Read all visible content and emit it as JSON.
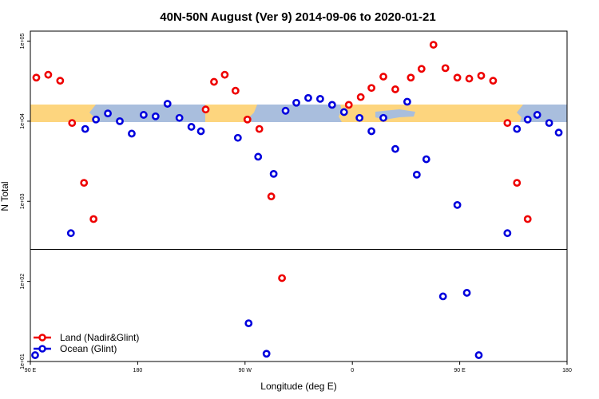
{
  "chart_data": {
    "type": "scatter",
    "title": "40N-50N August (Ver 9)   2014-09-06 to 2020-01-21",
    "xlabel": "Longitude (deg E)",
    "ylabel": "N Total",
    "x_scale": "linear",
    "y_scale": "log",
    "xlim": [
      90,
      540
    ],
    "ylim_log10": [
      1,
      5.1
    ],
    "x_ticks": [
      {
        "value": 90,
        "label": "90 E"
      },
      {
        "value": 180,
        "label": "180"
      },
      {
        "value": 270,
        "label": "90 W"
      },
      {
        "value": 360,
        "label": "0"
      },
      {
        "value": 450,
        "label": "90 E"
      },
      {
        "value": 540,
        "label": "180"
      }
    ],
    "y_ticks": [
      {
        "value": 1,
        "label": "1e+01"
      },
      {
        "value": 2,
        "label": "1e+02"
      },
      {
        "value": 3,
        "label": "1e+03"
      },
      {
        "value": 4,
        "label": "1e+04"
      },
      {
        "value": 5,
        "label": "1e+05"
      }
    ],
    "reference_line_log10": 2.4,
    "map_band": {
      "lon_range": [
        90,
        540
      ],
      "lat_range": [
        40,
        50
      ],
      "land_color": "#FDD57E",
      "ocean_color": "#A9BEDD"
    },
    "legend_position": "bottom-left",
    "series": [
      {
        "name": "Land (Nadir&Glint)",
        "color": "#EE0000",
        "points": [
          [
            95,
            35000
          ],
          [
            105,
            38000
          ],
          [
            115,
            32000
          ],
          [
            125,
            9500
          ],
          [
            135,
            1700
          ],
          [
            143,
            600
          ],
          [
            237,
            14000
          ],
          [
            244,
            31000
          ],
          [
            253,
            38000
          ],
          [
            262,
            24000
          ],
          [
            272,
            10500
          ],
          [
            282,
            8000
          ],
          [
            292,
            1150
          ],
          [
            301,
            110
          ],
          [
            357,
            16000
          ],
          [
            367,
            20000
          ],
          [
            376,
            26000
          ],
          [
            386,
            36000
          ],
          [
            396,
            25000
          ],
          [
            409,
            35000
          ],
          [
            418,
            45000
          ],
          [
            428,
            90000
          ],
          [
            438,
            46000
          ],
          [
            448,
            35000
          ],
          [
            458,
            34000
          ],
          [
            468,
            37000
          ],
          [
            478,
            32000
          ],
          [
            490,
            9500
          ],
          [
            498,
            1700
          ],
          [
            507,
            600
          ]
        ]
      },
      {
        "name": "Ocean (Glint)",
        "color": "#0000DD",
        "points": [
          [
            94,
            12
          ],
          [
            124,
            400
          ],
          [
            136,
            8000
          ],
          [
            145,
            10500
          ],
          [
            155,
            12500
          ],
          [
            165,
            10000
          ],
          [
            175,
            7000
          ],
          [
            185,
            12000
          ],
          [
            195,
            11500
          ],
          [
            205,
            16500
          ],
          [
            215,
            11000
          ],
          [
            225,
            8500
          ],
          [
            233,
            7500
          ],
          [
            264,
            6200
          ],
          [
            273,
            30
          ],
          [
            281,
            3600
          ],
          [
            288,
            12.5
          ],
          [
            294,
            2200
          ],
          [
            304,
            13500
          ],
          [
            313,
            17000
          ],
          [
            323,
            19500
          ],
          [
            333,
            19000
          ],
          [
            343,
            16000
          ],
          [
            353,
            13000
          ],
          [
            366,
            11000
          ],
          [
            376,
            7500
          ],
          [
            386,
            11000
          ],
          [
            396,
            4500
          ],
          [
            406,
            17500
          ],
          [
            414,
            2150
          ],
          [
            422,
            3350
          ],
          [
            436,
            65
          ],
          [
            448,
            900
          ],
          [
            456,
            72
          ],
          [
            466,
            12
          ],
          [
            490,
            400
          ],
          [
            498,
            8000
          ],
          [
            507,
            10500
          ],
          [
            515,
            12000
          ],
          [
            525,
            9500
          ],
          [
            533,
            7200
          ]
        ]
      }
    ]
  }
}
